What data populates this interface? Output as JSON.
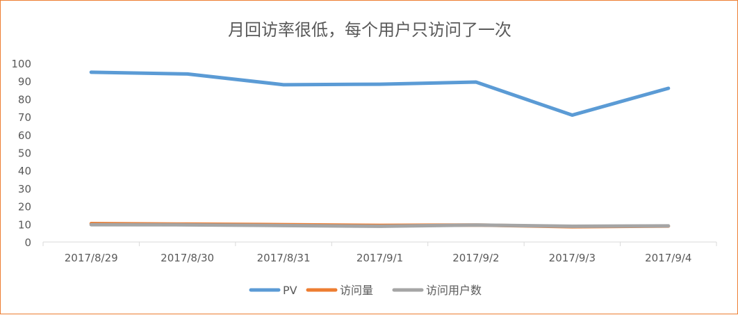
{
  "chart_data": {
    "type": "line",
    "title": "月回访率很低，每个用户只访问了一次",
    "categories": [
      "2017/8/29",
      "2017/8/30",
      "2017/8/31",
      "2017/9/1",
      "2017/9/2",
      "2017/9/3",
      "2017/9/4"
    ],
    "ylim": [
      0,
      100
    ],
    "yticks": [
      0,
      10,
      20,
      30,
      40,
      50,
      60,
      70,
      80,
      90,
      100
    ],
    "grid": false,
    "legend": "bottom",
    "series": [
      {
        "name": "PV",
        "color": "#5B9BD5",
        "values": [
          95,
          94,
          88,
          88.3,
          89.5,
          71,
          86
        ]
      },
      {
        "name": "访问量",
        "color": "#ED7D31",
        "values": [
          10.3,
          10,
          9.7,
          9.3,
          9.5,
          8.5,
          8.9
        ]
      },
      {
        "name": "访问用户数",
        "color": "#A5A5A5",
        "values": [
          9.7,
          9.6,
          9.2,
          8.8,
          9.5,
          8.8,
          9
        ]
      }
    ]
  }
}
